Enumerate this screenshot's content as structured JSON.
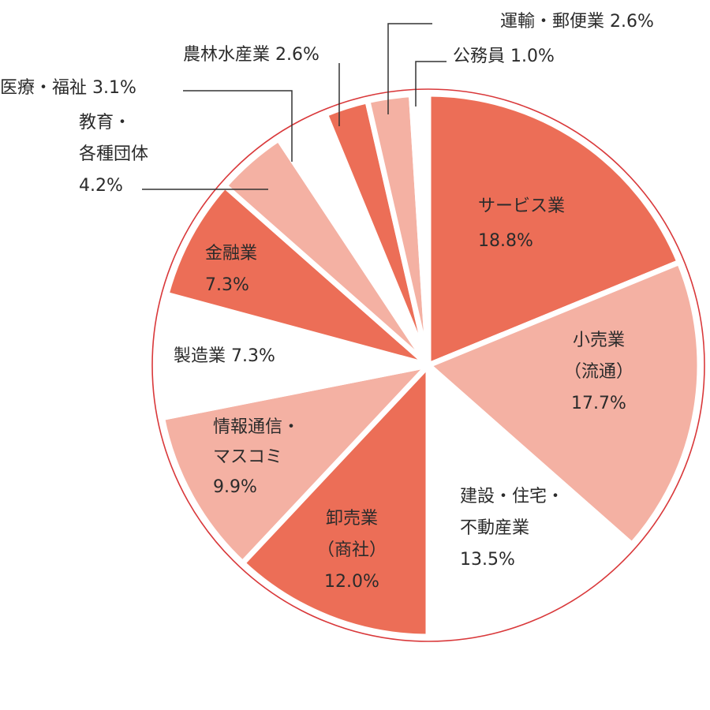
{
  "chart_data": {
    "type": "pie",
    "title": "",
    "colors": {
      "dark": "#EC6E57",
      "light": "#F4B1A3",
      "white": "#FFFFFF",
      "outline": "#D9383A",
      "divider": "#FFFFFF"
    },
    "slices": [
      {
        "name": "サービス業",
        "value": 18.8,
        "label": [
          "サービス業",
          "18.8%"
        ],
        "fill": "dark"
      },
      {
        "name": "小売業（流通）",
        "value": 17.7,
        "label": [
          "小売業",
          "（流通）",
          "17.7%"
        ],
        "fill": "light"
      },
      {
        "name": "建設・住宅・不動産業",
        "value": 13.5,
        "label": [
          "建設・住宅・",
          "不動産業",
          "13.5%"
        ],
        "fill": "white"
      },
      {
        "name": "卸売業（商社）",
        "value": 12.0,
        "label": [
          "卸売業",
          "（商社）",
          "12.0%"
        ],
        "fill": "dark"
      },
      {
        "name": "情報通信・マスコミ",
        "value": 9.9,
        "label": [
          "情報通信・",
          "マスコミ",
          "9.9%"
        ],
        "fill": "light"
      },
      {
        "name": "製造業",
        "value": 7.3,
        "label": [
          "製造業 7.3%"
        ],
        "fill": "white"
      },
      {
        "name": "金融業",
        "value": 7.3,
        "label": [
          "金融業",
          "7.3%"
        ],
        "fill": "dark"
      },
      {
        "name": "教育・各種団体",
        "value": 4.2,
        "label": [
          "教育・",
          "各種団体",
          "4.2%"
        ],
        "fill": "light"
      },
      {
        "name": "医療・福祉",
        "value": 3.1,
        "label": [
          "医療・福祉 3.1%"
        ],
        "fill": "white"
      },
      {
        "name": "農林水産業",
        "value": 2.6,
        "label": [
          "農林水産業 2.6%"
        ],
        "fill": "dark"
      },
      {
        "name": "運輸・郵便業",
        "value": 2.6,
        "label": [
          "運輸・郵便業 2.6%"
        ],
        "fill": "light"
      },
      {
        "name": "公務員",
        "value": 1.0,
        "label": [
          "公務員 1.0%"
        ],
        "fill": "white"
      }
    ]
  }
}
